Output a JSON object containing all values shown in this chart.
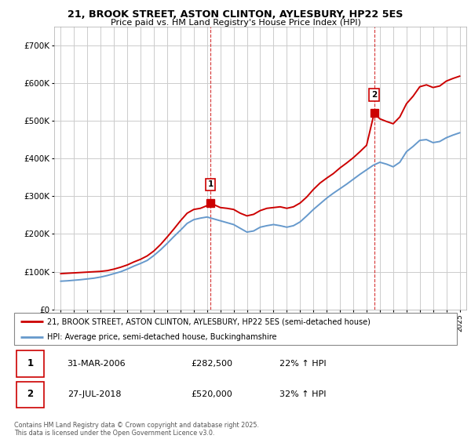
{
  "title_line1": "21, BROOK STREET, ASTON CLINTON, AYLESBURY, HP22 5ES",
  "title_line2": "Price paid vs. HM Land Registry's House Price Index (HPI)",
  "legend_label_red": "21, BROOK STREET, ASTON CLINTON, AYLESBURY, HP22 5ES (semi-detached house)",
  "legend_label_blue": "HPI: Average price, semi-detached house, Buckinghamshire",
  "transaction1_date": "31-MAR-2006",
  "transaction1_price": "£282,500",
  "transaction1_hpi": "22% ↑ HPI",
  "transaction2_date": "27-JUL-2018",
  "transaction2_price": "£520,000",
  "transaction2_hpi": "32% ↑ HPI",
  "footnote": "Contains HM Land Registry data © Crown copyright and database right 2025.\nThis data is licensed under the Open Government Licence v3.0.",
  "color_red": "#cc0000",
  "color_blue": "#6699cc",
  "color_grid": "#cccccc",
  "color_bg": "#ffffff",
  "ylim_min": 0,
  "ylim_max": 750000,
  "yticks": [
    0,
    100000,
    200000,
    300000,
    400000,
    500000,
    600000,
    700000
  ],
  "ytick_labels": [
    "£0",
    "£100K",
    "£200K",
    "£300K",
    "£400K",
    "£500K",
    "£600K",
    "£700K"
  ],
  "marker1_x": 2006.25,
  "marker1_y": 282500,
  "marker2_x": 2018.57,
  "marker2_y": 520000,
  "vline1_x": 2006.25,
  "vline2_x": 2018.57,
  "red_series_x": [
    1995,
    1995.5,
    1996,
    1996.5,
    1997,
    1997.5,
    1998,
    1998.5,
    1999,
    1999.5,
    2000,
    2000.5,
    2001,
    2001.5,
    2002,
    2002.5,
    2003,
    2003.5,
    2004,
    2004.5,
    2005,
    2005.5,
    2006,
    2006.25,
    2006.5,
    2007,
    2007.5,
    2008,
    2008.5,
    2009,
    2009.5,
    2010,
    2010.5,
    2011,
    2011.5,
    2012,
    2012.5,
    2013,
    2013.5,
    2014,
    2014.5,
    2015,
    2015.5,
    2016,
    2016.5,
    2017,
    2017.5,
    2018,
    2018.57,
    2019,
    2019.5,
    2020,
    2020.5,
    2021,
    2021.5,
    2022,
    2022.5,
    2023,
    2023.5,
    2024,
    2024.5,
    2025
  ],
  "red_series_y": [
    95000,
    96000,
    97000,
    98000,
    99000,
    100000,
    101000,
    103000,
    107000,
    112000,
    118000,
    126000,
    133000,
    142000,
    155000,
    172000,
    192000,
    213000,
    235000,
    255000,
    265000,
    268000,
    275000,
    282500,
    278000,
    270000,
    268000,
    265000,
    255000,
    248000,
    252000,
    262000,
    268000,
    270000,
    272000,
    268000,
    272000,
    282000,
    298000,
    318000,
    335000,
    348000,
    360000,
    375000,
    388000,
    402000,
    418000,
    435000,
    520000,
    505000,
    498000,
    492000,
    510000,
    545000,
    565000,
    590000,
    595000,
    588000,
    592000,
    605000,
    612000,
    618000
  ],
  "blue_series_x": [
    1995,
    1995.5,
    1996,
    1996.5,
    1997,
    1997.5,
    1998,
    1998.5,
    1999,
    1999.5,
    2000,
    2000.5,
    2001,
    2001.5,
    2002,
    2002.5,
    2003,
    2003.5,
    2004,
    2004.5,
    2005,
    2005.5,
    2006,
    2006.5,
    2007,
    2007.5,
    2008,
    2008.5,
    2009,
    2009.5,
    2010,
    2010.5,
    2011,
    2011.5,
    2012,
    2012.5,
    2013,
    2013.5,
    2014,
    2014.5,
    2015,
    2015.5,
    2016,
    2016.5,
    2017,
    2017.5,
    2018,
    2018.5,
    2019,
    2019.5,
    2020,
    2020.5,
    2021,
    2021.5,
    2022,
    2022.5,
    2023,
    2023.5,
    2024,
    2024.5,
    2025
  ],
  "blue_series_y": [
    75000,
    76000,
    77500,
    79000,
    81000,
    83000,
    86000,
    90000,
    95000,
    100000,
    107000,
    115000,
    122000,
    130000,
    143000,
    158000,
    175000,
    193000,
    210000,
    228000,
    238000,
    242000,
    245000,
    240000,
    235000,
    230000,
    225000,
    215000,
    205000,
    208000,
    218000,
    222000,
    225000,
    222000,
    218000,
    222000,
    232000,
    248000,
    265000,
    280000,
    295000,
    308000,
    320000,
    332000,
    345000,
    358000,
    370000,
    382000,
    390000,
    385000,
    378000,
    390000,
    418000,
    432000,
    448000,
    450000,
    442000,
    445000,
    455000,
    462000,
    468000
  ],
  "xmin": 1994.5,
  "xmax": 2025.5
}
